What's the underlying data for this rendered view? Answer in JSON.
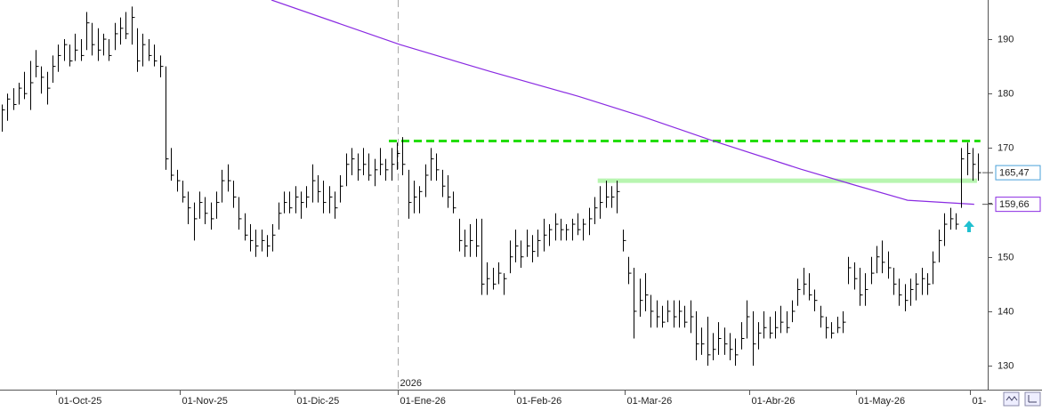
{
  "chart_data": {
    "type": "ohlc",
    "color": "#000000",
    "bars": [
      [
        178,
        173,
        177
      ],
      [
        180,
        175,
        179
      ],
      [
        181,
        177,
        178
      ],
      [
        182,
        178,
        181
      ],
      [
        184,
        179,
        180
      ],
      [
        186,
        177,
        182
      ],
      [
        188,
        183,
        185
      ],
      [
        185,
        180,
        183
      ],
      [
        184,
        178,
        181
      ],
      [
        187,
        182,
        185
      ],
      [
        189,
        184,
        187
      ],
      [
        190,
        186,
        189
      ],
      [
        189,
        185,
        186
      ],
      [
        191,
        186,
        188
      ],
      [
        190,
        186,
        187
      ],
      [
        195,
        188,
        193
      ],
      [
        193,
        187,
        189
      ],
      [
        192,
        186,
        188
      ],
      [
        191,
        187,
        190
      ],
      [
        190,
        186,
        187
      ],
      [
        193,
        188,
        191
      ],
      [
        194,
        189,
        192
      ],
      [
        195,
        190,
        191
      ],
      [
        196,
        189,
        194
      ],
      [
        192,
        184,
        186
      ],
      [
        191,
        185,
        189
      ],
      [
        190,
        186,
        187
      ],
      [
        189,
        185,
        186
      ],
      [
        187,
        183,
        185
      ],
      [
        185,
        166,
        168
      ],
      [
        170,
        164,
        165
      ],
      [
        166,
        162,
        164
      ],
      [
        164,
        160,
        161
      ],
      [
        162,
        156,
        159
      ],
      [
        160,
        153,
        157
      ],
      [
        162,
        157,
        160
      ],
      [
        161,
        156,
        158
      ],
      [
        160,
        155,
        157
      ],
      [
        162,
        157,
        160
      ],
      [
        166,
        160,
        164
      ],
      [
        167,
        162,
        164
      ],
      [
        164,
        159,
        161
      ],
      [
        161,
        155,
        157
      ],
      [
        158,
        153,
        154
      ],
      [
        156,
        151,
        153
      ],
      [
        155,
        150,
        152
      ],
      [
        155,
        151,
        153
      ],
      [
        154,
        150,
        152
      ],
      [
        156,
        151,
        154
      ],
      [
        160,
        155,
        158
      ],
      [
        162,
        158,
        160
      ],
      [
        162,
        158,
        159
      ],
      [
        163,
        158,
        161
      ],
      [
        162,
        157,
        160
      ],
      [
        163,
        159,
        161
      ],
      [
        167,
        160,
        164
      ],
      [
        165,
        160,
        162
      ],
      [
        164,
        158,
        160
      ],
      [
        163,
        158,
        161
      ],
      [
        162,
        157,
        159
      ],
      [
        165,
        160,
        163
      ],
      [
        169,
        163,
        167
      ],
      [
        170,
        165,
        168
      ],
      [
        169,
        164,
        166
      ],
      [
        170,
        165,
        167
      ],
      [
        169,
        164,
        165
      ],
      [
        168,
        163,
        166
      ],
      [
        170,
        165,
        167
      ],
      [
        168,
        164,
        166
      ],
      [
        170,
        164,
        167
      ],
      [
        171,
        166,
        169
      ],
      [
        172,
        165,
        167
      ],
      [
        166,
        157,
        160
      ],
      [
        164,
        158,
        161
      ],
      [
        163,
        158,
        162
      ],
      [
        167,
        161,
        165
      ],
      [
        170,
        164,
        168
      ],
      [
        169,
        164,
        166
      ],
      [
        166,
        161,
        163
      ],
      [
        165,
        159,
        161
      ],
      [
        162,
        158,
        159
      ],
      [
        157,
        151,
        153
      ],
      [
        155,
        150,
        152
      ],
      [
        156,
        150,
        153
      ],
      [
        157,
        150,
        152
      ],
      [
        157,
        143,
        145
      ],
      [
        149,
        143,
        146
      ],
      [
        148,
        144,
        145
      ],
      [
        149,
        145,
        147
      ],
      [
        147,
        143,
        146
      ],
      [
        153,
        147,
        150
      ],
      [
        155,
        149,
        152
      ],
      [
        153,
        148,
        150
      ],
      [
        155,
        150,
        152
      ],
      [
        154,
        149,
        151
      ],
      [
        155,
        150,
        153
      ],
      [
        157,
        151,
        154
      ],
      [
        156,
        152,
        155
      ],
      [
        158,
        153,
        156
      ],
      [
        157,
        153,
        155
      ],
      [
        156,
        153,
        155
      ],
      [
        157,
        153,
        156
      ],
      [
        158,
        154,
        155
      ],
      [
        157,
        153,
        156
      ],
      [
        159,
        154,
        157
      ],
      [
        161,
        156,
        159
      ],
      [
        163,
        157,
        160
      ],
      [
        164,
        159,
        161
      ],
      [
        163,
        159,
        161
      ],
      [
        164,
        158,
        162
      ],
      [
        155,
        151,
        153
      ],
      [
        150,
        145,
        147
      ],
      [
        148,
        135,
        140
      ],
      [
        146,
        139,
        142
      ],
      [
        147,
        140,
        143
      ],
      [
        143,
        137,
        140
      ],
      [
        142,
        137,
        139
      ],
      [
        141,
        137,
        138
      ],
      [
        142,
        138,
        140
      ],
      [
        142,
        137,
        139
      ],
      [
        142,
        137,
        140
      ],
      [
        141,
        137,
        138
      ],
      [
        142,
        136,
        139
      ],
      [
        140,
        131,
        134
      ],
      [
        137,
        132,
        134
      ],
      [
        139,
        130,
        132
      ],
      [
        136,
        131,
        133
      ],
      [
        138,
        132,
        135
      ],
      [
        137,
        132,
        134
      ],
      [
        136,
        131,
        133
      ],
      [
        135,
        130,
        132
      ],
      [
        138,
        133,
        135
      ],
      [
        142,
        135,
        139
      ],
      [
        140,
        130,
        134
      ],
      [
        138,
        133,
        136
      ],
      [
        140,
        135,
        137
      ],
      [
        139,
        135,
        136
      ],
      [
        140,
        135,
        137
      ],
      [
        141,
        136,
        138
      ],
      [
        140,
        136,
        137
      ],
      [
        142,
        138,
        140
      ],
      [
        146,
        141,
        144
      ],
      [
        148,
        143,
        145
      ],
      [
        147,
        142,
        143
      ],
      [
        144,
        140,
        142
      ],
      [
        141,
        137,
        139
      ],
      [
        139,
        135,
        137
      ],
      [
        138,
        135,
        136
      ],
      [
        139,
        136,
        137
      ],
      [
        140,
        136,
        138
      ],
      [
        150,
        145,
        148
      ],
      [
        149,
        144,
        146
      ],
      [
        148,
        141,
        143
      ],
      [
        147,
        141,
        144
      ],
      [
        150,
        145,
        147
      ],
      [
        152,
        147,
        150
      ],
      [
        153,
        147,
        149
      ],
      [
        151,
        146,
        148
      ],
      [
        148,
        143,
        145
      ],
      [
        146,
        141,
        143
      ],
      [
        145,
        140,
        142
      ],
      [
        146,
        141,
        144
      ],
      [
        147,
        142,
        145
      ],
      [
        148,
        143,
        146
      ],
      [
        147,
        143,
        145
      ],
      [
        151,
        145,
        149
      ],
      [
        155,
        149,
        153
      ],
      [
        158,
        152,
        156
      ],
      [
        159,
        155,
        157
      ],
      [
        158,
        155,
        156
      ],
      [
        170,
        159,
        168
      ],
      [
        171,
        165,
        169
      ],
      [
        170,
        164,
        167
      ],
      [
        169,
        164,
        165.47
      ]
    ],
    "xlim": [
      -0.3,
      174.7
    ],
    "xticks": [
      {
        "value": 9.6,
        "label": "01-Oct-25"
      },
      {
        "value": 31.5,
        "label": "01-Nov-25"
      },
      {
        "value": 51.9,
        "label": "01-Dic-25"
      },
      {
        "value": 70.2,
        "label": "01-Ene-26"
      },
      {
        "value": 90.8,
        "label": "01-Feb-26"
      },
      {
        "value": 110.4,
        "label": "01-Mar-26"
      },
      {
        "value": 132.4,
        "label": "01-Abr-26"
      },
      {
        "value": 151.4,
        "label": "01-May-26"
      },
      {
        "value": 171.5,
        "label": "01-"
      }
    ],
    "year_marker": {
      "value": 70.2,
      "label": "2026"
    },
    "ylim": [
      125.6,
      197.2
    ],
    "yticks": [
      130,
      140,
      150,
      160,
      170,
      180,
      190
    ],
    "ma": {
      "color": "#8a2be2",
      "x": [
        47.8,
        70.6,
        86.4,
        102.2,
        113.2,
        125.8,
        141.6,
        151.1,
        160.5,
        172.3
      ],
      "values": [
        197.2,
        189,
        184.1,
        179.5,
        175.9,
        171.4,
        166.1,
        163.2,
        160.4,
        159.66
      ],
      "value_label": "159,66"
    },
    "last_price": {
      "value": 165.47,
      "label": "165,47"
    },
    "hlines": [
      {
        "value": 171.3,
        "x": [
          68.6,
          173.4
        ],
        "color": "#22dd00",
        "style": "dashed"
      },
      {
        "value": 164,
        "x": [
          105.6,
          172.8
        ],
        "color": "#b8f5b0",
        "style": "solid"
      }
    ]
  }
}
